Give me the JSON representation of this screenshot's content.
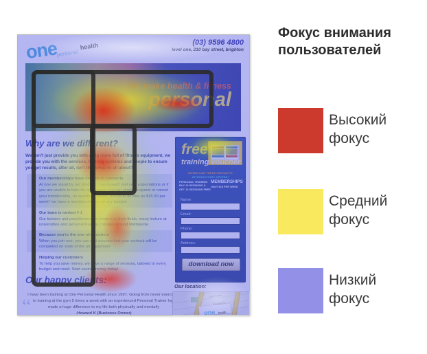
{
  "legend": {
    "title": "Фокус внимания пользователей",
    "items": [
      {
        "label": "Высокий\nфокус",
        "color": "#cc3a2e"
      },
      {
        "label": "Средний\nфокус",
        "color": "#f8e95e"
      },
      {
        "label": "Низкий\nфокус",
        "color": "#9390e8"
      }
    ]
  },
  "heat_colors": {
    "high": "#e1190f",
    "medium": "#fae128",
    "low": "#6165e2"
  },
  "page": {
    "header": {
      "logo_one": "one",
      "logo_personal": "personal",
      "logo_health": "health",
      "phone": "(03) 9596 4800",
      "address": "level one, 210 bay street, brighton"
    },
    "hero": {
      "line1": "We make health & fitness",
      "line2": "personal"
    },
    "main": {
      "heading": "Why are we different?",
      "intro": "We don't just provide you with a big room full of fitness equipment, we provide you with the services, training systems and people to ensure you get results, after all, isn't that what its all about?",
      "check": "✓",
      "bullets": [
        {
          "title": "Our memberships have no lock in contracts",
          "body": "At one we stand by our product. If we haven't met your expectations or if you are unable to train for any reason you can simply suspend or cancel your membership, no questions asked. And from as little as $15.50 per week* we have a membership to suit any budget."
        },
        {
          "title": "Our team is ranked # 1",
          "body": "Our trainers and practitioners are leaders in their fields, many lecture at universities and personal training colleges around Melbourne."
        },
        {
          "title": "Because you're the one who matters",
          "body": "When you join one, you can rest assured that your workout will be completed on state of the art equipment"
        },
        {
          "title": "Helping our customers",
          "body": "To help you save money, we have a range of services, tailored to every budget and need. Start saving money today!"
        }
      ],
      "clients_heading": "Our happy clients:",
      "quote_open": "“",
      "quote_close": "”",
      "testimonial": "I have been training at One Personal Health since 1997. Going from never exercising to training at the gym 5 times a week with an experienced Personal Trainer has made a huge difference to my life both physically and mentally",
      "testimonial_author": "-Howard K (Business Owner)"
    },
    "sidebar": {
      "free": "free",
      "training_voucher": "training voucher",
      "download_line1": "DOWNLOAD THESE FANTASTIC",
      "download_line2": "INTRODUCTORY OFFERS!",
      "offer_left_lines": [
        "PERSONAL TRAINING",
        "BUY 10 SESSIONS &",
        "GET 10 SESSIONS FREE"
      ],
      "offer_right_title": "MEMBERSHIPS",
      "offer_right_sub": "ONLY $18 PER WEEK",
      "form_labels": [
        "Name:",
        "Email:",
        "Phone:",
        "Address:"
      ],
      "button_label": "download now"
    },
    "location": {
      "heading": "Our location:",
      "streets": [
        "Oak Grove",
        "Cooper St"
      ],
      "map_logo_one": "one",
      "map_logo_health": "health"
    }
  }
}
